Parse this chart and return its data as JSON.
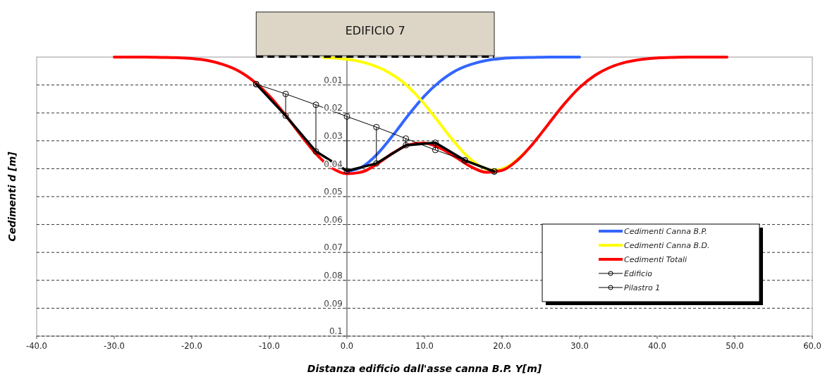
{
  "chart_data": {
    "type": "line",
    "xlabel": "Distanza edificio dall'asse canna B.P.  Y[m]",
    "ylabel": "Cedimenti d [m]",
    "annotations": [
      "EDIFICIO 7"
    ],
    "xlim": [
      -40,
      60
    ],
    "xticks": [
      {
        "value": -40,
        "label": "-40.0"
      },
      {
        "value": -30,
        "label": "-30.0"
      },
      {
        "value": -20,
        "label": "-20.0"
      },
      {
        "value": -10,
        "label": "-10.0"
      },
      {
        "value": 0,
        "label": "0.0"
      },
      {
        "value": 10,
        "label": "10.0"
      },
      {
        "value": 20,
        "label": "20.0"
      },
      {
        "value": 30,
        "label": "30.0"
      },
      {
        "value": 40,
        "label": "40.0"
      },
      {
        "value": 50,
        "label": "50.0"
      },
      {
        "value": 60,
        "label": "60.0"
      }
    ],
    "ylim": [
      0.1,
      0
    ],
    "yticks": [
      0.01,
      0.02,
      0.03,
      0.04,
      0.05,
      0.06,
      0.07,
      0.08,
      0.09,
      0.1
    ],
    "grid": "y",
    "legend": "bottom right",
    "series": [
      {
        "name": "Cedimenti Canna B.P.",
        "color": "#3366ff",
        "x": [
          0,
          2,
          4,
          6,
          8,
          10,
          12,
          14,
          16,
          18,
          20,
          22,
          24,
          26,
          28,
          30
        ],
        "values": [
          0.041,
          0.0393,
          0.0345,
          0.0278,
          0.0205,
          0.0139,
          0.0087,
          0.0049,
          0.0026,
          0.0012,
          0.0005,
          0.0002,
          0.0001,
          0,
          0,
          0
        ]
      },
      {
        "name": "Cedimenti Canna B.D.",
        "color": "#ffff00",
        "x": [
          -3,
          -1,
          1,
          3,
          5,
          7,
          9,
          11,
          13,
          15,
          17,
          19,
          21,
          23
        ],
        "values": [
          0.0002,
          0.0005,
          0.0012,
          0.0026,
          0.0049,
          0.0085,
          0.0137,
          0.0203,
          0.0275,
          0.0341,
          0.0388,
          0.0405,
          0.0388,
          0.0341
        ]
      },
      {
        "name": "Cedimenti Totali",
        "color": "#ff0000",
        "x": [
          -30,
          -28,
          -26,
          -24,
          -22,
          -20,
          -18,
          -16,
          -14,
          -12,
          -10,
          -8,
          -6,
          -4,
          -2,
          0,
          2,
          4,
          6,
          8,
          10,
          12,
          14,
          16,
          18,
          20,
          22,
          24,
          26,
          28,
          30,
          32,
          34,
          36,
          38,
          40,
          42,
          44,
          46,
          49
        ],
        "values": [
          0,
          0,
          0,
          0.0001,
          0.0002,
          0.0005,
          0.0012,
          0.0026,
          0.0049,
          0.0087,
          0.0139,
          0.0205,
          0.0278,
          0.0346,
          0.0396,
          0.0418,
          0.0411,
          0.0381,
          0.0343,
          0.0314,
          0.0308,
          0.0326,
          0.0358,
          0.0393,
          0.0413,
          0.0406,
          0.0369,
          0.031,
          0.0239,
          0.0169,
          0.0109,
          0.0065,
          0.0036,
          0.0018,
          0.0008,
          0.0003,
          0.0001,
          0,
          0,
          0
        ]
      },
      {
        "name": "Edificio",
        "color": "#000000",
        "marker": "circle",
        "x": [
          -11.7,
          -7.9,
          -4,
          0,
          3.8,
          7.6,
          11.4,
          15.2,
          19
        ],
        "values": [
          0.0097,
          0.0132,
          0.0171,
          0.0213,
          0.0251,
          0.0292,
          0.0333,
          0.037,
          0.041
        ]
      },
      {
        "name": "Pilastro 1",
        "color": "#000000",
        "marker": "circle",
        "x": [
          -11.7,
          -7.9,
          -4,
          0,
          3.8,
          7.6,
          11.4,
          15.2,
          19
        ],
        "values": [
          0.0097,
          0.021,
          0.0338,
          0.0408,
          0.0381,
          0.0316,
          0.0307,
          0.037,
          0.041
        ],
        "errors": [
          null,
          [
            0.0132,
            0.021
          ],
          [
            0.0171,
            0.0338
          ],
          [
            0.0213,
            0.0408
          ],
          [
            0.0251,
            0.0381
          ],
          [
            0.0292,
            0.0316
          ],
          [
            0.0307,
            0.0333
          ],
          null,
          null
        ]
      }
    ]
  }
}
